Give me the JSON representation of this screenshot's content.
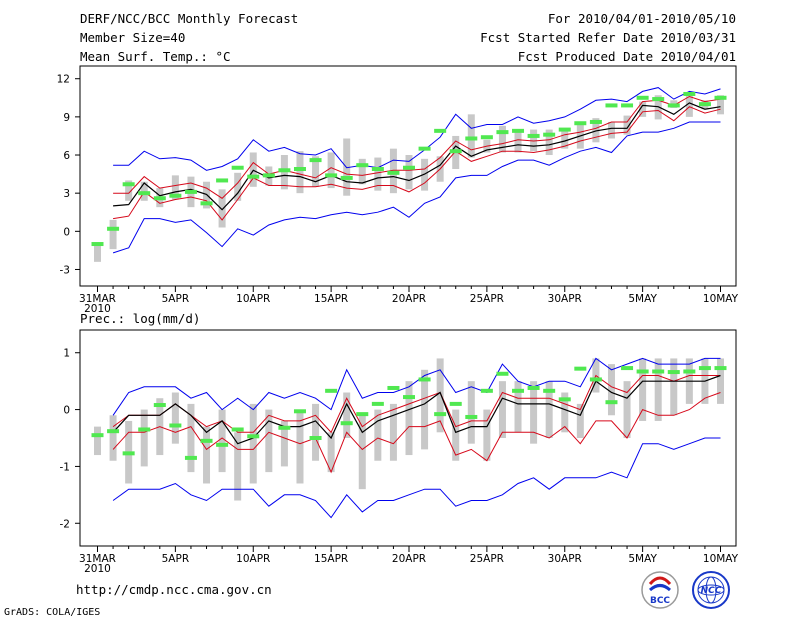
{
  "header": {
    "title": "DERF/NCC/BCC Monthly Forecast",
    "member_size": "Member Size=40",
    "variable": "Mean Surf. Temp.: °C",
    "forecast_period": "For 2010/04/01-2010/05/10",
    "started_refer_date": "Fcst Started Refer Date 2010/03/31",
    "produced_date": "Fcst Produced Date 2010/04/01"
  },
  "footer": {
    "url": "http://cmdp.ncc.cma.gov.cn",
    "credit": "GrADS: COLA/IGES",
    "logo_bcc": "BCC",
    "logo_ncc": "NCC"
  },
  "colors": {
    "envelope": "#0000ee",
    "spread": "#d6081a",
    "mean": "#000000",
    "box": "#c8c8c8",
    "obs": "#50e850"
  },
  "chart_data": [
    {
      "type": "line",
      "title": "Mean Surf. Temp.: °C",
      "x_days": [
        1,
        2,
        3,
        4,
        5,
        6,
        7,
        8,
        9,
        10,
        11,
        12,
        13,
        14,
        15,
        16,
        17,
        18,
        19,
        20,
        21,
        22,
        23,
        24,
        25,
        26,
        27,
        28,
        29,
        30,
        31,
        32,
        33,
        34,
        35,
        36,
        37,
        38,
        39,
        40,
        41
      ],
      "x_tick_days": [
        1,
        6,
        11,
        16,
        21,
        26,
        31,
        36,
        41
      ],
      "x_tick_labels": [
        "31MAR\n2010",
        "5APR",
        "10APR",
        "15APR",
        "20APR",
        "25APR",
        "30APR",
        "5MAY",
        "10MAY"
      ],
      "ylim": [
        -4.3,
        13
      ],
      "yticks": [
        -3,
        0,
        3,
        6,
        9,
        12
      ],
      "series": [
        {
          "name": "max",
          "color": "blue",
          "values": [
            null,
            5.2,
            5.2,
            6.3,
            5.7,
            5.8,
            5.6,
            4.8,
            5.1,
            5.7,
            7.2,
            6.3,
            6.6,
            6.1,
            6.0,
            6.5,
            5.0,
            5.2,
            5.0,
            5.6,
            5.5,
            6.4,
            7.4,
            9.2,
            8.1,
            8.4,
            8.4,
            9.0,
            8.5,
            8.7,
            9.0,
            9.6,
            10.3,
            10.4,
            10.2,
            11.0,
            11.3,
            10.4,
            11.0,
            10.8,
            11.2
          ]
        },
        {
          "name": "upper",
          "color": "red",
          "values": [
            null,
            3.0,
            3.0,
            4.3,
            3.4,
            3.6,
            3.8,
            3.4,
            2.6,
            3.8,
            5.4,
            4.5,
            4.8,
            4.5,
            4.2,
            5.0,
            4.5,
            4.4,
            4.6,
            4.8,
            4.8,
            4.9,
            5.8,
            7.1,
            6.4,
            6.7,
            6.9,
            7.2,
            7.1,
            7.2,
            7.6,
            7.8,
            8.1,
            8.6,
            8.6,
            10.2,
            10.3,
            9.9,
            10.6,
            10.2,
            10.4
          ]
        },
        {
          "name": "mean",
          "color": "black",
          "values": [
            null,
            2.0,
            2.1,
            3.8,
            2.8,
            3.1,
            3.3,
            2.9,
            1.7,
            3.0,
            4.8,
            4.2,
            4.4,
            4.3,
            3.9,
            4.4,
            3.9,
            3.8,
            4.2,
            4.3,
            4.0,
            4.5,
            5.2,
            6.7,
            5.9,
            6.4,
            6.6,
            6.8,
            6.7,
            6.8,
            7.1,
            7.5,
            7.9,
            8.1,
            8.1,
            9.9,
            9.8,
            9.2,
            10.1,
            9.6,
            9.8
          ]
        },
        {
          "name": "lower",
          "color": "red",
          "values": [
            null,
            1.0,
            1.2,
            3.1,
            2.2,
            2.5,
            2.7,
            2.4,
            0.9,
            2.5,
            4.2,
            3.6,
            3.6,
            3.5,
            3.5,
            3.7,
            3.4,
            3.3,
            3.6,
            3.6,
            3.1,
            3.8,
            4.9,
            6.3,
            5.5,
            5.9,
            6.3,
            6.3,
            6.2,
            6.4,
            6.7,
            7.1,
            7.4,
            7.7,
            7.8,
            9.4,
            9.5,
            8.7,
            9.8,
            9.3,
            9.6
          ]
        },
        {
          "name": "min",
          "color": "blue",
          "values": [
            null,
            -1.7,
            -1.3,
            1.0,
            1.0,
            0.7,
            0.9,
            -0.1,
            -1.2,
            0.2,
            -0.3,
            0.5,
            0.9,
            1.1,
            1.0,
            1.3,
            1.5,
            1.3,
            1.5,
            1.9,
            1.1,
            2.2,
            2.7,
            4.2,
            4.4,
            4.4,
            5.1,
            5.6,
            5.6,
            5.2,
            5.8,
            6.3,
            6.6,
            6.2,
            7.5,
            7.8,
            7.8,
            8.1,
            8.6,
            8.6,
            8.6
          ]
        }
      ],
      "boxes": [
        [
          -2.4,
          -0.9
        ],
        [
          -1.4,
          0.9
        ],
        [
          2.4,
          4.0
        ],
        [
          2.4,
          3.9
        ],
        [
          1.9,
          3.4
        ],
        [
          2.5,
          4.4
        ],
        [
          1.9,
          4.3
        ],
        [
          1.8,
          3.9
        ],
        [
          0.3,
          3.3
        ],
        [
          2.4,
          4.6
        ],
        [
          3.5,
          6.2
        ],
        [
          3.6,
          5.1
        ],
        [
          3.3,
          6.0
        ],
        [
          3.0,
          6.3
        ],
        [
          3.5,
          5.9
        ],
        [
          3.4,
          6.2
        ],
        [
          2.8,
          7.3
        ],
        [
          3.7,
          5.7
        ],
        [
          3.2,
          5.8
        ],
        [
          3.0,
          6.5
        ],
        [
          3.3,
          6.0
        ],
        [
          3.2,
          5.7
        ],
        [
          3.9,
          5.9
        ],
        [
          4.9,
          7.5
        ],
        [
          5.8,
          9.2
        ],
        [
          6.2,
          7.2
        ],
        [
          6.2,
          8.3
        ],
        [
          6.2,
          7.9
        ],
        [
          6.3,
          8.0
        ],
        [
          6.0,
          8.0
        ],
        [
          6.5,
          7.9
        ],
        [
          6.5,
          8.5
        ],
        [
          7.0,
          8.9
        ],
        [
          7.3,
          8.6
        ],
        [
          7.6,
          9.1
        ],
        [
          9.0,
          10.2
        ],
        [
          8.8,
          10.7
        ],
        [
          9.7,
          10.3
        ],
        [
          9.0,
          10.9
        ],
        [
          9.6,
          10.3
        ],
        [
          9.2,
          10.7
        ]
      ],
      "observed": [
        -1.0,
        0.2,
        3.7,
        3.0,
        2.6,
        2.8,
        3.1,
        2.2,
        4.0,
        5.0,
        4.3,
        4.4,
        4.8,
        4.9,
        5.6,
        4.4,
        4.2,
        5.2,
        4.9,
        4.6,
        5.0,
        6.5,
        7.9,
        6.3,
        7.3,
        7.4,
        7.8,
        7.9,
        7.5,
        7.6,
        8.0,
        8.5,
        8.6,
        9.9,
        9.9,
        10.5,
        10.4,
        9.9,
        10.8,
        10.0,
        10.5
      ]
    },
    {
      "type": "line",
      "title": "Prec.: log(mm/d)",
      "x_days": [
        1,
        2,
        3,
        4,
        5,
        6,
        7,
        8,
        9,
        10,
        11,
        12,
        13,
        14,
        15,
        16,
        17,
        18,
        19,
        20,
        21,
        22,
        23,
        24,
        25,
        26,
        27,
        28,
        29,
        30,
        31,
        32,
        33,
        34,
        35,
        36,
        37,
        38,
        39,
        40,
        41
      ],
      "x_tick_days": [
        1,
        6,
        11,
        16,
        21,
        26,
        31,
        36,
        41
      ],
      "x_tick_labels": [
        "31MAR\n2010",
        "5APR",
        "10APR",
        "15APR",
        "20APR",
        "25APR",
        "30APR",
        "5MAY",
        "10MAY"
      ],
      "ylim": [
        -2.4,
        1.4
      ],
      "yticks": [
        -2,
        -1,
        0,
        1
      ],
      "series": [
        {
          "name": "max",
          "color": "blue",
          "values": [
            null,
            -0.1,
            0.3,
            0.4,
            0.4,
            0.4,
            0.2,
            0.3,
            0.0,
            0.2,
            0.0,
            0.3,
            0.2,
            0.3,
            0.2,
            0.0,
            0.7,
            0.2,
            0.3,
            0.3,
            0.4,
            0.6,
            0.7,
            0.3,
            0.4,
            0.3,
            0.8,
            0.5,
            0.4,
            0.5,
            0.5,
            0.4,
            0.9,
            0.7,
            0.8,
            0.9,
            0.8,
            0.8,
            0.8,
            0.9,
            0.9
          ]
        },
        {
          "name": "upper",
          "color": "red",
          "values": [
            null,
            -0.3,
            -0.1,
            -0.1,
            -0.1,
            0.1,
            -0.1,
            -0.3,
            -0.2,
            -0.4,
            -0.4,
            -0.1,
            -0.2,
            -0.2,
            -0.1,
            -0.4,
            0.2,
            -0.3,
            -0.1,
            0.0,
            0.1,
            0.2,
            0.3,
            -0.3,
            -0.2,
            -0.2,
            0.3,
            0.2,
            0.2,
            0.2,
            0.1,
            0.0,
            0.6,
            0.4,
            0.3,
            0.6,
            0.6,
            0.5,
            0.6,
            0.6,
            0.6
          ]
        },
        {
          "name": "mean",
          "color": "black",
          "values": [
            null,
            -0.4,
            -0.1,
            -0.1,
            -0.1,
            0.1,
            -0.1,
            -0.4,
            -0.2,
            -0.6,
            -0.5,
            -0.2,
            -0.3,
            -0.3,
            -0.2,
            -0.5,
            0.1,
            -0.4,
            -0.2,
            -0.1,
            0.0,
            0.1,
            0.3,
            -0.4,
            -0.3,
            -0.3,
            0.2,
            0.1,
            0.1,
            0.1,
            0.0,
            -0.1,
            0.5,
            0.3,
            0.2,
            0.5,
            0.5,
            0.5,
            0.5,
            0.5,
            0.6
          ]
        },
        {
          "name": "lower",
          "color": "red",
          "values": [
            null,
            -0.7,
            -0.4,
            -0.4,
            -0.3,
            -0.4,
            -0.3,
            -0.7,
            -0.5,
            -0.7,
            -0.7,
            -0.4,
            -0.5,
            -0.6,
            -0.5,
            -1.1,
            -0.4,
            -0.7,
            -0.5,
            -0.6,
            -0.3,
            -0.3,
            -0.2,
            -0.8,
            -0.7,
            -0.9,
            -0.4,
            -0.4,
            -0.4,
            -0.5,
            -0.3,
            -0.6,
            -0.2,
            -0.2,
            -0.5,
            0.0,
            -0.1,
            -0.1,
            0.0,
            0.2,
            0.3
          ]
        },
        {
          "name": "min",
          "color": "blue",
          "values": [
            null,
            -1.6,
            -1.4,
            -1.4,
            -1.4,
            -1.3,
            -1.5,
            -1.6,
            -1.4,
            -1.4,
            -1.4,
            -1.7,
            -1.5,
            -1.5,
            -1.6,
            -1.9,
            -1.5,
            -1.8,
            -1.6,
            -1.6,
            -1.5,
            -1.4,
            -1.4,
            -1.7,
            -1.6,
            -1.6,
            -1.5,
            -1.3,
            -1.2,
            -1.4,
            -1.2,
            -1.2,
            -1.2,
            -1.1,
            -1.2,
            -0.6,
            -0.6,
            -0.7,
            -0.6,
            -0.5,
            -0.5
          ]
        }
      ],
      "boxes": [
        [
          -0.8,
          -0.3
        ],
        [
          -0.9,
          -0.1
        ],
        [
          -1.3,
          -0.2
        ],
        [
          -1.0,
          0.0
        ],
        [
          -0.8,
          0.2
        ],
        [
          -0.6,
          0.3
        ],
        [
          -1.1,
          0.1
        ],
        [
          -1.3,
          -0.3
        ],
        [
          -1.1,
          0.0
        ],
        [
          -1.6,
          -0.4
        ],
        [
          -1.3,
          0.1
        ],
        [
          -1.1,
          0.0
        ],
        [
          -1.0,
          -0.2
        ],
        [
          -1.3,
          0.0
        ],
        [
          -0.9,
          0.1
        ],
        [
          -1.1,
          -0.4
        ],
        [
          -0.5,
          0.3
        ],
        [
          -1.4,
          -0.1
        ],
        [
          -0.9,
          0.0
        ],
        [
          -0.9,
          0.1
        ],
        [
          -0.8,
          0.5
        ],
        [
          -0.7,
          0.7
        ],
        [
          -0.4,
          0.9
        ],
        [
          -0.9,
          0.0
        ],
        [
          -0.6,
          0.5
        ],
        [
          -0.9,
          0.0
        ],
        [
          -0.5,
          0.5
        ],
        [
          -0.4,
          0.5
        ],
        [
          -0.6,
          0.5
        ],
        [
          -0.5,
          0.5
        ],
        [
          -0.4,
          0.3
        ],
        [
          -0.5,
          0.1
        ],
        [
          0.3,
          0.9
        ],
        [
          -0.1,
          0.8
        ],
        [
          -0.5,
          0.5
        ],
        [
          -0.2,
          0.9
        ],
        [
          -0.2,
          0.9
        ],
        [
          -0.1,
          0.9
        ],
        [
          0.1,
          0.9
        ],
        [
          0.1,
          0.9
        ],
        [
          0.1,
          0.9
        ]
      ],
      "observed": [
        -0.45,
        -0.38,
        -0.77,
        -0.35,
        0.08,
        -0.28,
        -0.85,
        -0.55,
        -0.62,
        -0.35,
        -0.47,
        null,
        -0.32,
        -0.03,
        -0.5,
        0.33,
        -0.24,
        -0.08,
        0.1,
        0.38,
        0.22,
        0.53,
        -0.08,
        0.1,
        -0.13,
        0.33,
        0.63,
        0.33,
        0.38,
        0.33,
        0.18,
        0.72,
        0.53,
        0.13,
        0.73,
        0.67,
        0.67,
        0.66,
        0.67,
        0.73,
        0.73
      ]
    }
  ]
}
